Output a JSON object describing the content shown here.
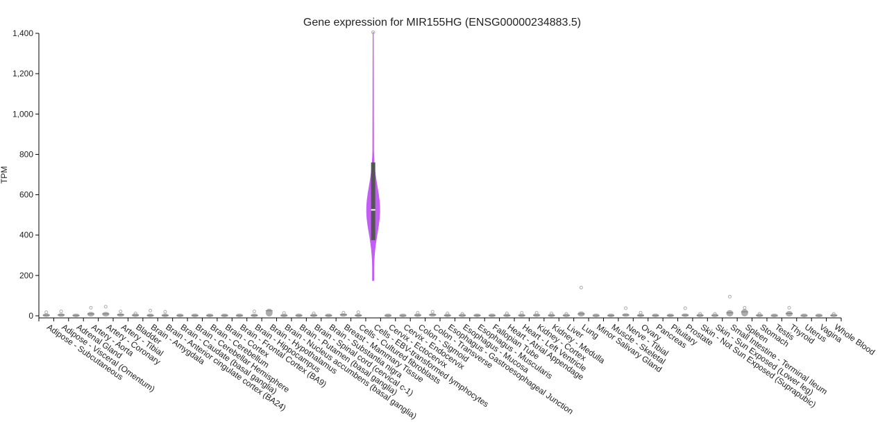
{
  "chart_data": {
    "type": "violin",
    "title": "Gene expression for MIR155HG (ENSG00000234883.5)",
    "ylabel": "TPM",
    "xlabel": "",
    "ylim": [
      0,
      1400
    ],
    "yticks": [
      0,
      200,
      400,
      600,
      800,
      1000,
      1200,
      1400
    ],
    "ytick_labels": [
      "0",
      "200",
      "400",
      "600",
      "800",
      "1,000",
      "1,200",
      "1,400"
    ],
    "grid": false,
    "legend": "none",
    "highlight_color": "#c25df5",
    "default_color": "#9e9e9e",
    "categories": [
      "Adipose - Subcutaneous",
      "Adipose - Visceral (Omentum)",
      "Adrenal Gland",
      "Artery - Aorta",
      "Artery - Coronary",
      "Artery - Tibial",
      "Bladder",
      "Brain - Amygdala",
      "Brain - Anterior cingulate cortex (BA24)",
      "Brain - Caudate (basal ganglia)",
      "Brain - Cerebellar Hemisphere",
      "Brain - Cerebellum",
      "Brain - Cortex",
      "Brain - Frontal Cortex (BA9)",
      "Brain - Hippocampus",
      "Brain - Hypothalamus",
      "Brain - Nucleus accumbens (basal ganglia)",
      "Brain - Putamen (basal ganglia)",
      "Brain - Spinal cord (cervical c-1)",
      "Brain - Substantia nigra",
      "Breast - Mammary Tissue",
      "Cells - Cultured fibroblasts",
      "Cells - EBV-transformed lymphocytes",
      "Cervix - Ectocervix",
      "Cervix - Endocervix",
      "Colon - Sigmoid",
      "Colon - Transverse",
      "Esophagus - Gastroesophageal Junction",
      "Esophagus - Mucosa",
      "Esophagus - Muscularis",
      "Fallopian Tube",
      "Heart - Atrial Appendage",
      "Heart - Left Ventricle",
      "Kidney - Cortex",
      "Kidney - Medulla",
      "Liver",
      "Lung",
      "Minor Salivary Gland",
      "Muscle - Skeletal",
      "Nerve - Tibial",
      "Ovary",
      "Pancreas",
      "Pituitary",
      "Prostate",
      "Skin - Not Sun Exposed (Suprapubic)",
      "Skin - Sun Exposed (Lower leg)",
      "Small Intestine - Terminal Ileum",
      "Spleen",
      "Stomach",
      "Testis",
      "Thyroid",
      "Uterus",
      "Vagina",
      "Whole Blood"
    ],
    "series": [
      {
        "median": [
          3,
          4,
          1,
          10,
          10,
          5,
          3,
          2,
          2,
          1,
          1,
          1,
          1,
          1,
          2,
          25,
          1,
          1,
          2,
          1,
          5,
          2,
          525,
          0,
          0,
          3,
          5,
          2,
          2,
          2,
          1,
          2,
          2,
          3,
          2,
          2,
          10,
          0,
          1,
          4,
          2,
          1,
          1,
          3,
          2,
          2,
          15,
          20,
          2,
          0,
          12,
          0,
          0,
          2
        ],
        "q1": [
          1,
          2,
          0,
          5,
          5,
          2,
          1,
          1,
          1,
          0,
          0,
          0,
          0,
          0,
          1,
          20,
          0,
          0,
          1,
          0,
          2,
          1,
          375,
          0,
          0,
          1,
          2,
          1,
          1,
          1,
          0,
          1,
          1,
          1,
          1,
          1,
          5,
          0,
          0,
          2,
          1,
          0,
          0,
          1,
          1,
          1,
          8,
          12,
          1,
          0,
          6,
          0,
          0,
          1
        ],
        "q3": [
          6,
          8,
          2,
          16,
          16,
          9,
          6,
          4,
          4,
          2,
          2,
          2,
          2,
          2,
          4,
          32,
          2,
          2,
          4,
          2,
          9,
          4,
          760,
          0,
          0,
          6,
          9,
          4,
          4,
          4,
          2,
          4,
          4,
          6,
          4,
          4,
          18,
          0,
          2,
          8,
          4,
          2,
          2,
          6,
          4,
          4,
          25,
          30,
          4,
          0,
          20,
          0,
          0,
          4
        ],
        "min": [
          0,
          0,
          0,
          0,
          0,
          0,
          0,
          0,
          0,
          0,
          0,
          0,
          0,
          0,
          0,
          12,
          0,
          0,
          0,
          0,
          0,
          0,
          175,
          0,
          0,
          0,
          0,
          0,
          0,
          0,
          0,
          0,
          0,
          0,
          0,
          0,
          0,
          0,
          0,
          0,
          0,
          0,
          0,
          0,
          0,
          0,
          0,
          0,
          0,
          0,
          0,
          0,
          0,
          0
        ],
        "max": [
          18,
          22,
          6,
          40,
          45,
          22,
          12,
          26,
          20,
          5,
          5,
          5,
          5,
          5,
          22,
          35,
          14,
          6,
          12,
          5,
          16,
          18,
          1405,
          0,
          0,
          15,
          20,
          12,
          10,
          8,
          6,
          12,
          15,
          15,
          12,
          10,
          140,
          2,
          8,
          38,
          16,
          6,
          6,
          38,
          10,
          10,
          95,
          40,
          10,
          0,
          40,
          0,
          0,
          10
        ],
        "highlight": [
          false,
          false,
          false,
          false,
          false,
          false,
          false,
          false,
          false,
          false,
          false,
          false,
          false,
          false,
          false,
          false,
          false,
          false,
          false,
          false,
          false,
          false,
          true,
          false,
          false,
          false,
          false,
          false,
          false,
          false,
          false,
          false,
          false,
          false,
          false,
          false,
          false,
          false,
          false,
          false,
          false,
          false,
          false,
          false,
          false,
          false,
          false,
          false,
          false,
          false,
          false,
          false,
          false,
          false
        ]
      }
    ]
  }
}
